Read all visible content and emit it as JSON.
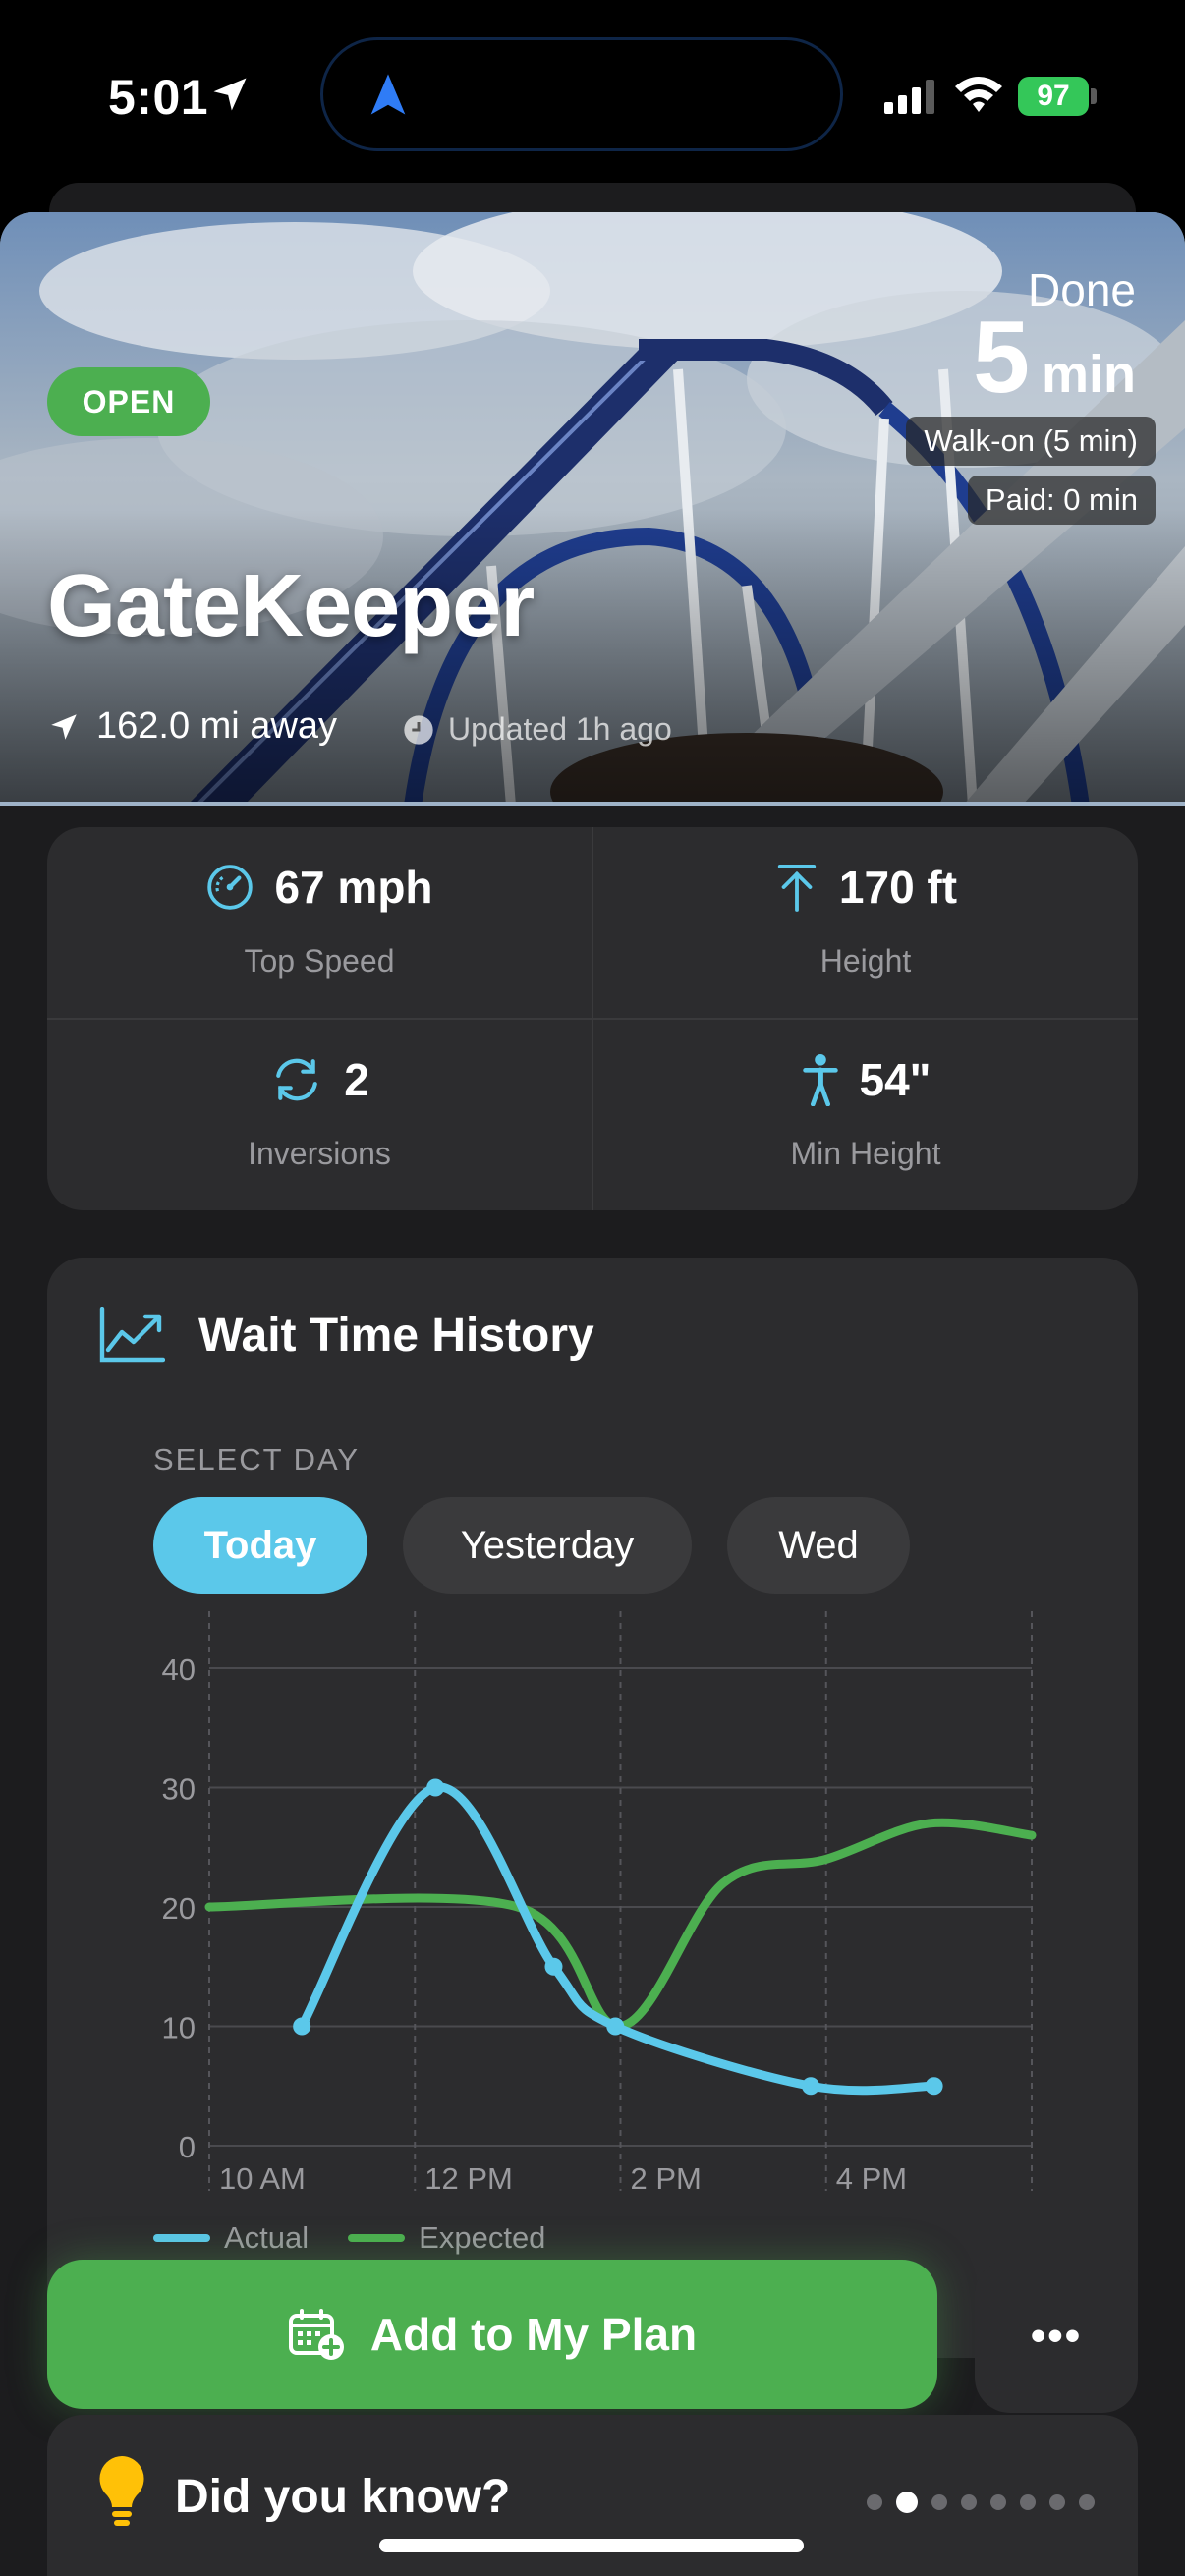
{
  "status_bar": {
    "time": "5:01",
    "battery": "97"
  },
  "hero": {
    "status_badge": "OPEN",
    "title": "GateKeeper",
    "distance": "162.0 mi away",
    "updated": "Updated 1h ago",
    "done_label": "Done",
    "wait_number": "5",
    "wait_unit": "min",
    "walk_on": "Walk-on (5 min)",
    "paid": "Paid: 0 min"
  },
  "stats": {
    "top_speed": {
      "value": "67 mph",
      "label": "Top Speed"
    },
    "height": {
      "value": "170 ft",
      "label": "Height"
    },
    "inversions": {
      "value": "2",
      "label": "Inversions"
    },
    "min_height": {
      "value": "54\"",
      "label": "Min Height"
    }
  },
  "wait_history": {
    "title": "Wait Time History",
    "select_label": "SELECT DAY",
    "tabs": [
      "Today",
      "Yesterday",
      "Wed"
    ],
    "selected_tab": "Today",
    "legend": {
      "actual": "Actual",
      "expected": "Expected"
    }
  },
  "chart_data": {
    "type": "line",
    "title": "",
    "xlabel": "",
    "ylabel": "",
    "ylim": [
      0,
      40
    ],
    "yticks": [
      0,
      10,
      20,
      30,
      40
    ],
    "xlim": [
      10,
      18
    ],
    "xticks": [
      10,
      12,
      14,
      16
    ],
    "xtick_labels": [
      "10 AM",
      "12 PM",
      "2 PM",
      "4 PM"
    ],
    "grid": true,
    "legend_position": "bottom-left",
    "series": [
      {
        "name": "Actual",
        "color": "#5bc8ea",
        "markers": true,
        "points": [
          [
            10.9,
            10
          ],
          [
            12.2,
            30
          ],
          [
            13.35,
            15
          ],
          [
            13.95,
            10
          ],
          [
            15.85,
            5
          ],
          [
            17.05,
            5
          ]
        ]
      },
      {
        "name": "Expected",
        "color": "#4caf50",
        "markers": false,
        "points": [
          [
            10,
            20
          ],
          [
            13,
            20
          ],
          [
            14,
            10
          ],
          [
            15,
            22
          ],
          [
            16,
            24
          ],
          [
            17,
            27
          ],
          [
            18,
            26
          ]
        ]
      }
    ]
  },
  "action_bar": {
    "add_label": "Add to My Plan",
    "more_label": "•••"
  },
  "did_you_know": {
    "title": "Did you know?",
    "pages": 8,
    "active_page": 2
  },
  "colors": {
    "accent_blue": "#5bc8ea",
    "accent_green": "#4caf50",
    "card": "#2c2c2e",
    "background": "#1c1c1e"
  }
}
